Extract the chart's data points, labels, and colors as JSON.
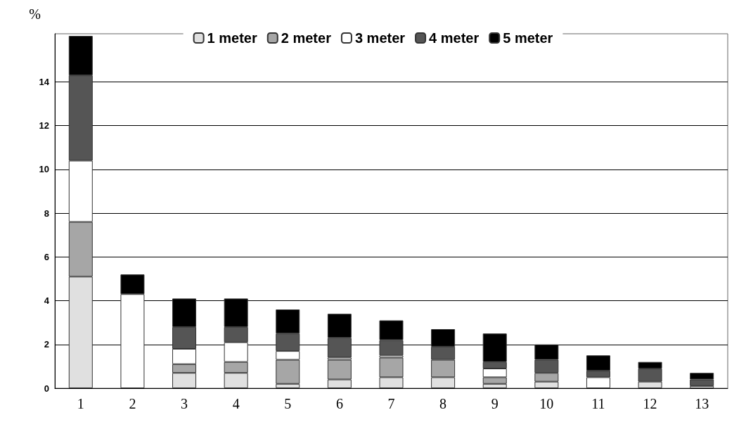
{
  "chart_data": {
    "type": "bar",
    "stacked": true,
    "ylabel": "%",
    "categories": [
      "1",
      "2",
      "3",
      "4",
      "5",
      "6",
      "7",
      "8",
      "9",
      "10",
      "11",
      "12",
      "13"
    ],
    "series": [
      {
        "name": "1 meter",
        "color": "#e0e0e0",
        "values": [
          5.1,
          null,
          0.7,
          0.7,
          0.2,
          0.4,
          0.5,
          0.5,
          0.2,
          0.3,
          null,
          0.3,
          null
        ]
      },
      {
        "name": "2 meter",
        "color": "#a6a6a6",
        "values": [
          2.5,
          null,
          0.4,
          0.5,
          1.1,
          0.9,
          0.9,
          0.8,
          0.3,
          0.4,
          null,
          null,
          null
        ]
      },
      {
        "name": "3 meter",
        "color": "#ffffff",
        "values": [
          2.8,
          4.3,
          0.7,
          0.9,
          0.4,
          0.1,
          0.1,
          null,
          0.4,
          null,
          0.5,
          null,
          0.1
        ]
      },
      {
        "name": "4 meter",
        "color": "#555555",
        "values": [
          3.9,
          null,
          1.0,
          0.7,
          0.8,
          0.9,
          0.7,
          0.6,
          0.3,
          0.6,
          0.3,
          0.6,
          0.3
        ]
      },
      {
        "name": "5 meter",
        "color": "#000000",
        "values": [
          1.8,
          0.9,
          1.3,
          1.3,
          1.1,
          1.1,
          0.9,
          0.8,
          1.3,
          0.7,
          0.7,
          0.3,
          0.3
        ]
      }
    ],
    "ylim": [
      0,
      16.2
    ],
    "yticks": [
      0,
      2,
      4,
      6,
      8,
      10,
      12,
      14
    ],
    "grid": "y",
    "legend": "top"
  }
}
